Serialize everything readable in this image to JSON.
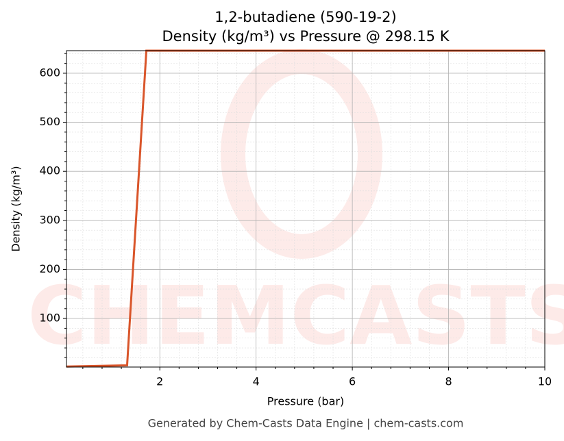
{
  "chart_data": {
    "type": "line",
    "title": "1,2-butadiene (590-19-2)",
    "subtitle": "Density (kg/m³) vs Pressure @ 298.15 K",
    "x_label": "Pressure (bar)",
    "y_label": "Density (kg/m³)",
    "footer": "Generated by Chem-Casts Data Engine | chem-casts.com",
    "x": [
      0.06,
      1.32,
      1.72,
      10
    ],
    "series": [
      {
        "name": "Density",
        "color": "#d9552a",
        "values": [
          2,
          4.5,
          646,
          646
        ]
      }
    ],
    "xlim": [
      0.06,
      10
    ],
    "ylim": [
      1,
      646
    ],
    "xticks": [
      2,
      4,
      6,
      8,
      10
    ],
    "yticks": [
      100,
      200,
      300,
      400,
      500,
      600
    ],
    "xminorticks": [
      0.4,
      0.8,
      1.2,
      1.6,
      2.4,
      2.8,
      3.2,
      3.6,
      4.4,
      4.8,
      5.2,
      5.6,
      6.4,
      6.8,
      7.2,
      7.6,
      8.4,
      8.8,
      9.2,
      9.6
    ],
    "yminorticks": [
      20,
      40,
      60,
      80,
      120,
      140,
      160,
      180,
      220,
      240,
      260,
      280,
      320,
      340,
      360,
      380,
      420,
      440,
      460,
      480,
      520,
      540,
      560,
      580,
      620,
      640
    ],
    "grid": true
  }
}
